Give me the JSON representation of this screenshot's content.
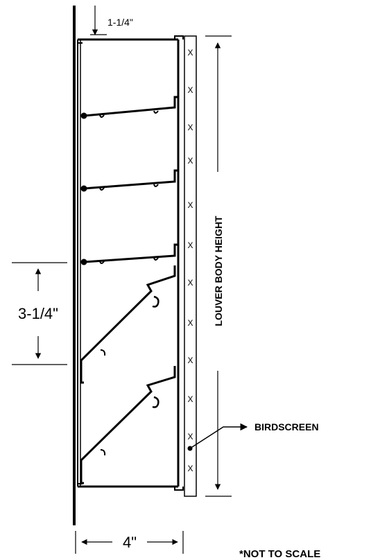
{
  "dimensions": {
    "top_gap": "1-1/4\"",
    "blade_spacing": "3-1/4\"",
    "depth": "4\""
  },
  "labels": {
    "body_height": "LOUVER BODY HEIGHT",
    "birdscreen": "BIRDSCREEN",
    "scale_note": "*NOT TO SCALE"
  },
  "birdscreen_mark": "X"
}
